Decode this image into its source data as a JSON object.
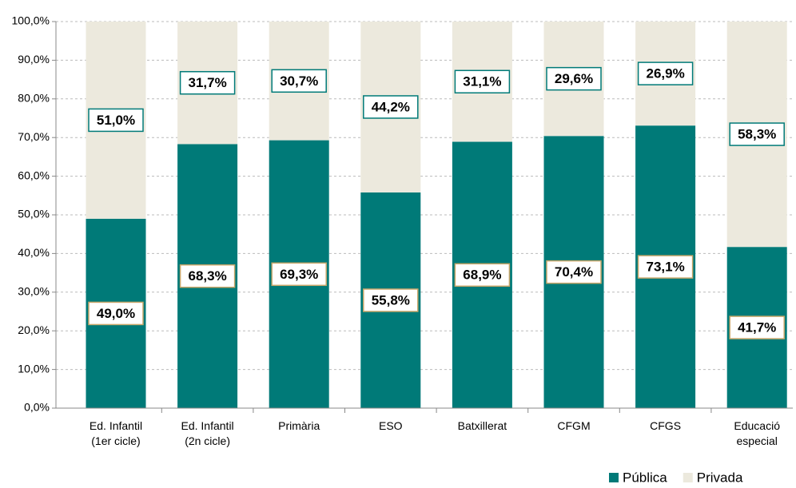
{
  "chart_data": {
    "type": "stacked_bar",
    "categories": [
      "Ed. Infantil\n(1er cicle)",
      "Ed. Infantil\n(2n cicle)",
      "Primària",
      "ESO",
      "Batxillerat",
      "CFGM",
      "CFGS",
      "Educació\nespecial"
    ],
    "series": [
      {
        "name": "Pública",
        "color": "#007a78",
        "values": [
          49.0,
          68.3,
          69.3,
          55.8,
          68.9,
          70.4,
          73.1,
          41.7
        ],
        "value_labels": [
          "49,0%",
          "68,3%",
          "69,3%",
          "55,8%",
          "68,9%",
          "70,4%",
          "73,1%",
          "41,7%"
        ]
      },
      {
        "name": "Privada",
        "color": "#ece9dd",
        "values": [
          51.0,
          31.7,
          30.7,
          44.2,
          31.1,
          29.6,
          26.9,
          58.3
        ],
        "value_labels": [
          "51,0%",
          "31,7%",
          "30,7%",
          "44,2%",
          "31,1%",
          "29,6%",
          "26,9%",
          "58,3%"
        ]
      }
    ],
    "ylim": [
      0,
      100
    ],
    "yticks": [
      {
        "value": 0,
        "label": "0,0%"
      },
      {
        "value": 10,
        "label": "10,0%"
      },
      {
        "value": 20,
        "label": "20,0%"
      },
      {
        "value": 30,
        "label": "30,0%"
      },
      {
        "value": 40,
        "label": "40,0%"
      },
      {
        "value": 50,
        "label": "50,0%"
      },
      {
        "value": 60,
        "label": "60,0%"
      },
      {
        "value": 70,
        "label": "70,0%"
      },
      {
        "value": 80,
        "label": "80,0%"
      },
      {
        "value": 90,
        "label": "90,0%"
      },
      {
        "value": 100,
        "label": "100,0%"
      }
    ],
    "grid": true,
    "legend": "bottom-right"
  }
}
